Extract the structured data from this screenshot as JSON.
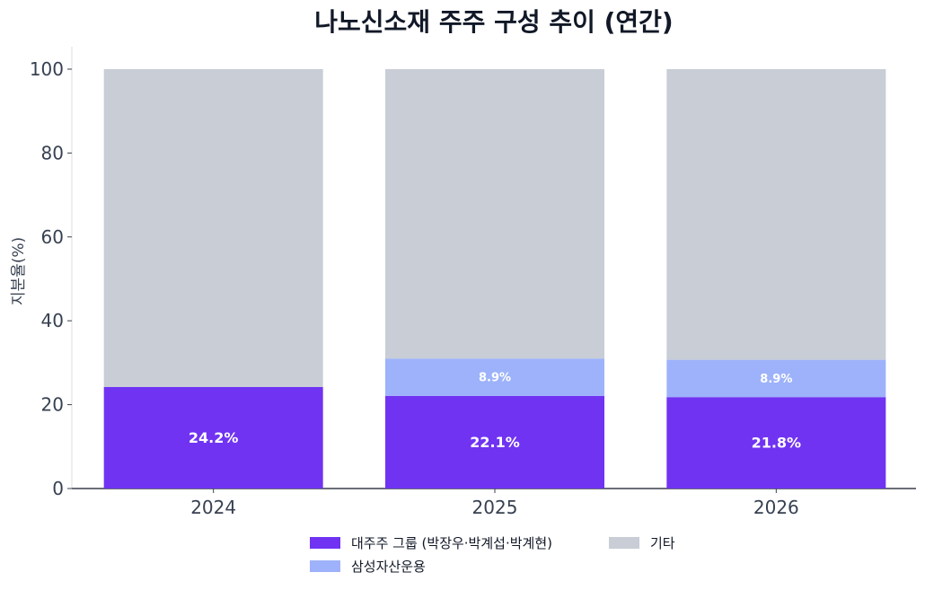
{
  "chart_data": {
    "type": "bar",
    "stacked": true,
    "title": "나노신소재 주주 구성 추이 (연간)",
    "xlabel": "",
    "ylabel": "지분율(%)",
    "categories": [
      "2024",
      "2025",
      "2026"
    ],
    "ylim": [
      0,
      100
    ],
    "yticks": [
      0,
      20,
      40,
      60,
      80,
      100
    ],
    "grid": false,
    "legend_position": "bottom",
    "series": [
      {
        "name": "대주주 그룹 (박장우·박계섭·박계현)",
        "color": "#7033F2",
        "values": [
          24.2,
          22.1,
          21.8
        ],
        "labels": [
          "24.2%",
          "22.1%",
          "21.8%"
        ]
      },
      {
        "name": "삼성자산운용",
        "color": "#9DB2FA",
        "values": [
          0,
          8.9,
          8.9
        ],
        "labels": [
          "",
          "8.9%",
          "8.9%"
        ]
      },
      {
        "name": "기타",
        "color": "#C8CDD6",
        "values": [
          75.8,
          69.0,
          69.3
        ],
        "labels": [
          "",
          "",
          ""
        ]
      }
    ]
  }
}
